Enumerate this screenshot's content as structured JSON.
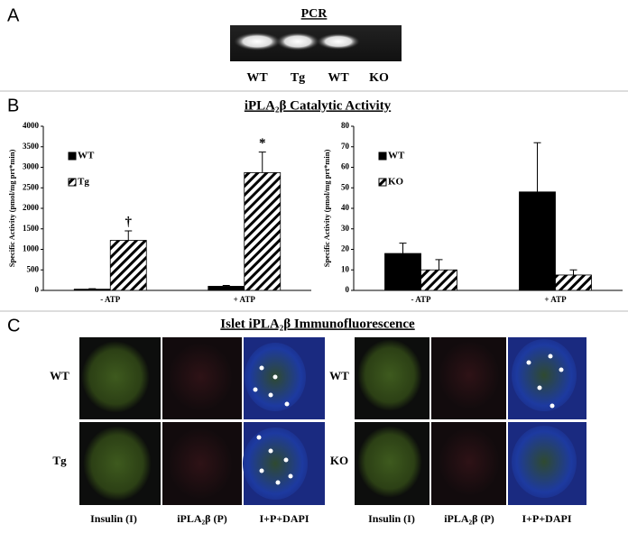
{
  "panel_labels": [
    "A",
    "B",
    "C"
  ],
  "pcr": {
    "title": "PCR",
    "lanes": [
      "WT",
      "Tg",
      "WT",
      "KO"
    ]
  },
  "activity_title": "iPLA₂β Catalytic Activity",
  "chart_data": [
    {
      "type": "bar",
      "ylabel": "Specific Activity (pmol/mg prt*min)",
      "categories": [
        "- ATP",
        "+ ATP"
      ],
      "series": [
        {
          "name": "WT",
          "color": "#000000",
          "hatch": false,
          "values": [
            30,
            100
          ],
          "errors": [
            10,
            20
          ]
        },
        {
          "name": "Tg",
          "color": "#000000",
          "hatch": true,
          "values": [
            1220,
            2870
          ],
          "errors": [
            230,
            500
          ]
        }
      ],
      "annotations": [
        "†",
        "*"
      ],
      "ylim": [
        0,
        4000
      ],
      "yticks": [
        0,
        500,
        1000,
        1500,
        2000,
        2500,
        3000,
        3500,
        4000
      ],
      "legend": "upper left"
    },
    {
      "type": "bar",
      "ylabel": "Specific Activity (pmol/mg prt*min)",
      "categories": [
        "- ATP",
        "+ ATP"
      ],
      "series": [
        {
          "name": "WT",
          "color": "#000000",
          "hatch": false,
          "values": [
            18,
            48
          ],
          "errors": [
            5,
            24
          ]
        },
        {
          "name": "KO",
          "color": "#000000",
          "hatch": true,
          "values": [
            10,
            7.5
          ],
          "errors": [
            5,
            2.5
          ]
        }
      ],
      "ylim": [
        0,
        80
      ],
      "yticks": [
        0,
        10,
        20,
        30,
        40,
        50,
        60,
        70,
        80
      ],
      "legend": "upper left"
    }
  ],
  "immuno": {
    "title": "Islet iPLA₂β Immunofluorescence",
    "left_rows": [
      "WT",
      "Tg"
    ],
    "right_rows": [
      "WT",
      "KO"
    ],
    "left_columns": [
      "Insulin (I)",
      "iPLA₂β (P)",
      "I+P+DAPI"
    ],
    "right_columns": [
      "Insulin (I)",
      "iPLA₂β (P)",
      "I+P+DAPI"
    ]
  }
}
